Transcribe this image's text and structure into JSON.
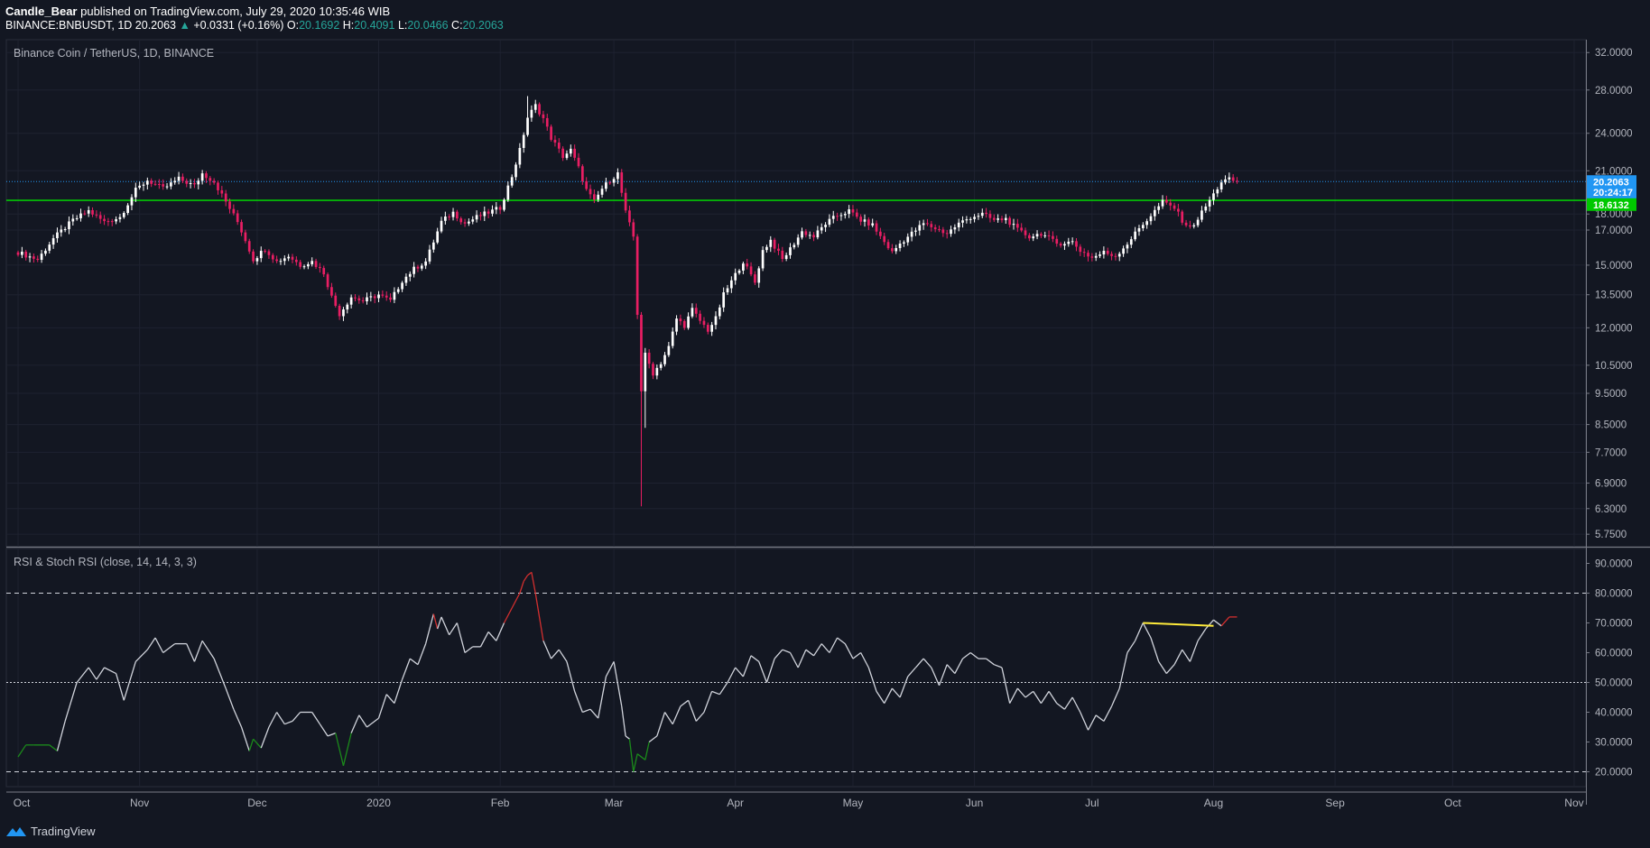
{
  "header": {
    "author": "Candle_Bear",
    "published_text": "published on TradingView.com, July 29, 2020 10:35:46 WIB",
    "symbol": "BINANCE:BNBUSDT, 1D",
    "last": "20.2063",
    "change": "+0.0331 (+0.16%)",
    "o_label": "O:",
    "o": "20.1692",
    "h_label": "H:",
    "h": "20.4091",
    "l_label": "L:",
    "l": "20.0466",
    "c_label": "C:",
    "c": "20.2063"
  },
  "footer": {
    "brand": "TradingView"
  },
  "colors": {
    "background": "#131722",
    "grid": "#1e2230",
    "bull": "#ffffff",
    "bear": "#e91e63",
    "support": "#00e600",
    "last_price": "#2196f3",
    "rsi": "#d1d4dc",
    "overbought": "#d32f2f",
    "oversold": "#1b8a1b",
    "divergence": "#ffeb3b"
  },
  "chart_data": [
    {
      "type": "candlestick",
      "title": "Binance Coin / TetherUS, 1D, BINANCE",
      "scale": "log",
      "ylim": [
        5.5,
        33.5
      ],
      "y_ticks": [
        "32.0000",
        "28.0000",
        "24.0000",
        "21.0000",
        "18.0000",
        "17.0000",
        "15.0000",
        "13.5000",
        "12.0000",
        "10.5000",
        "9.5000",
        "8.5000",
        "7.7000",
        "6.9000",
        "6.3000",
        "5.7500"
      ],
      "x_labels": [
        "Oct",
        "Nov",
        "Dec",
        "2020",
        "Feb",
        "Mar",
        "Apr",
        "May",
        "Jun",
        "Jul",
        "Aug",
        "Sep",
        "Oct",
        "Nov"
      ],
      "x_label_days": [
        0,
        31,
        61,
        92,
        123,
        152,
        183,
        213,
        244,
        274,
        305,
        336,
        366,
        397
      ],
      "x_range_days": [
        -3,
        400
      ],
      "price_labels": [
        {
          "text": "20.2063",
          "value": 20.2063,
          "color": "#2196f3"
        },
        {
          "text": "20:24:17",
          "value": 19.45,
          "color": "#2196f3"
        },
        {
          "text": "18.6132",
          "value": 18.6132,
          "color": "#00c800"
        }
      ],
      "levels": [
        {
          "name": "last-price-line",
          "value": 20.2063,
          "style": "dotted",
          "color": "#2196f3"
        },
        {
          "name": "support-line",
          "value": 18.9,
          "style": "solid",
          "color": "#00e600"
        }
      ],
      "close_path": [
        [
          0,
          15.7
        ],
        [
          5,
          15.3
        ],
        [
          9,
          16.5
        ],
        [
          14,
          17.6
        ],
        [
          18,
          18.2
        ],
        [
          22,
          17.5
        ],
        [
          26,
          17.8
        ],
        [
          30,
          19.6
        ],
        [
          33,
          20.3
        ],
        [
          37,
          19.7
        ],
        [
          41,
          20.4
        ],
        [
          45,
          19.9
        ],
        [
          47,
          20.8
        ],
        [
          50,
          20.2
        ],
        [
          53,
          18.8
        ],
        [
          56,
          17.5
        ],
        [
          58,
          16.4
        ],
        [
          60,
          15.3
        ],
        [
          63,
          15.9
        ],
        [
          66,
          15.2
        ],
        [
          69,
          15.5
        ],
        [
          72,
          15.0
        ],
        [
          75,
          15.2
        ],
        [
          78,
          14.6
        ],
        [
          80,
          13.4
        ],
        [
          82,
          12.6
        ],
        [
          85,
          13.4
        ],
        [
          88,
          13.2
        ],
        [
          92,
          13.5
        ],
        [
          95,
          13.2
        ],
        [
          98,
          14.2
        ],
        [
          101,
          14.8
        ],
        [
          104,
          15.2
        ],
        [
          108,
          17.5
        ],
        [
          111,
          18.1
        ],
        [
          114,
          17.4
        ],
        [
          117,
          17.8
        ],
        [
          120,
          18.1
        ],
        [
          123,
          18.4
        ],
        [
          126,
          20.6
        ],
        [
          128,
          22.6
        ],
        [
          130,
          25.4
        ],
        [
          132,
          26.5
        ],
        [
          134,
          25.3
        ],
        [
          136,
          23.6
        ],
        [
          139,
          22.1
        ],
        [
          141,
          22.6
        ],
        [
          143,
          21.2
        ],
        [
          145,
          19.6
        ],
        [
          147,
          18.8
        ],
        [
          149,
          19.7
        ],
        [
          151,
          20.3
        ],
        [
          153,
          20.8
        ],
        [
          155,
          18.1
        ],
        [
          157,
          16.6
        ],
        [
          159,
          9.6
        ],
        [
          160,
          10.9
        ],
        [
          162,
          10.2
        ],
        [
          164,
          10.6
        ],
        [
          166,
          11.2
        ],
        [
          168,
          12.4
        ],
        [
          170,
          12.1
        ],
        [
          172,
          12.8
        ],
        [
          174,
          12.3
        ],
        [
          176,
          11.9
        ],
        [
          178,
          12.4
        ],
        [
          180,
          13.5
        ],
        [
          183,
          14.5
        ],
        [
          185,
          15.2
        ],
        [
          188,
          14.1
        ],
        [
          190,
          15.8
        ],
        [
          192,
          16.4
        ],
        [
          195,
          15.3
        ],
        [
          197,
          15.9
        ],
        [
          200,
          16.9
        ],
        [
          203,
          16.6
        ],
        [
          206,
          17.4
        ],
        [
          209,
          17.9
        ],
        [
          212,
          18.2
        ],
        [
          215,
          17.6
        ],
        [
          218,
          17.3
        ],
        [
          220,
          16.6
        ],
        [
          223,
          15.7
        ],
        [
          225,
          16.2
        ],
        [
          228,
          16.8
        ],
        [
          231,
          17.4
        ],
        [
          234,
          17.1
        ],
        [
          237,
          16.8
        ],
        [
          240,
          17.4
        ],
        [
          243,
          17.8
        ],
        [
          246,
          18.0
        ],
        [
          249,
          17.6
        ],
        [
          252,
          17.7
        ],
        [
          255,
          17.0
        ],
        [
          258,
          16.6
        ],
        [
          261,
          16.8
        ],
        [
          265,
          16.2
        ],
        [
          269,
          16.3
        ],
        [
          271,
          15.8
        ],
        [
          274,
          15.4
        ],
        [
          277,
          15.7
        ],
        [
          280,
          15.5
        ],
        [
          283,
          16.2
        ],
        [
          286,
          17.1
        ],
        [
          289,
          17.9
        ],
        [
          292,
          18.8
        ],
        [
          295,
          18.4
        ],
        [
          297,
          17.6
        ],
        [
          299,
          17.1
        ],
        [
          301,
          17.7
        ],
        [
          303,
          18.5
        ],
        [
          305,
          19.3
        ],
        [
          307,
          20.2
        ],
        [
          309,
          20.35
        ],
        [
          311,
          20.21
        ]
      ]
    },
    {
      "type": "line",
      "title": "RSI & Stoch RSI (close, 14, 14, 3, 3)",
      "ylim": [
        15,
        95
      ],
      "y_ticks": [
        "90.0000",
        "80.0000",
        "70.0000",
        "60.0000",
        "50.0000",
        "40.0000",
        "30.0000",
        "20.0000"
      ],
      "bands": [
        80,
        50,
        20
      ],
      "overbought": 70,
      "oversold": 30,
      "points": [
        [
          0,
          25
        ],
        [
          2,
          29
        ],
        [
          4,
          29
        ],
        [
          8,
          29
        ],
        [
          10,
          27
        ],
        [
          12,
          37
        ],
        [
          15,
          50
        ],
        [
          18,
          55
        ],
        [
          20,
          51
        ],
        [
          22,
          55
        ],
        [
          25,
          53
        ],
        [
          27,
          44
        ],
        [
          30,
          57
        ],
        [
          33,
          61
        ],
        [
          35,
          65
        ],
        [
          37,
          60
        ],
        [
          40,
          63
        ],
        [
          43,
          63
        ],
        [
          45,
          57
        ],
        [
          47,
          64
        ],
        [
          50,
          58
        ],
        [
          53,
          48
        ],
        [
          55,
          41
        ],
        [
          57,
          35
        ],
        [
          59,
          27
        ],
        [
          60,
          31
        ],
        [
          62,
          28
        ],
        [
          64,
          35
        ],
        [
          66,
          40
        ],
        [
          68,
          36
        ],
        [
          70,
          37
        ],
        [
          72,
          40
        ],
        [
          75,
          40
        ],
        [
          77,
          36
        ],
        [
          79,
          32
        ],
        [
          81,
          33
        ],
        [
          83,
          22
        ],
        [
          85,
          33
        ],
        [
          87,
          39
        ],
        [
          89,
          35
        ],
        [
          92,
          38
        ],
        [
          94,
          46
        ],
        [
          96,
          43
        ],
        [
          98,
          51
        ],
        [
          100,
          58
        ],
        [
          102,
          56
        ],
        [
          104,
          63
        ],
        [
          106,
          73
        ],
        [
          107,
          68
        ],
        [
          108,
          72
        ],
        [
          110,
          66
        ],
        [
          112,
          70
        ],
        [
          114,
          60
        ],
        [
          116,
          62
        ],
        [
          118,
          62
        ],
        [
          120,
          67
        ],
        [
          122,
          64
        ],
        [
          124,
          70
        ],
        [
          126,
          75
        ],
        [
          128,
          80
        ],
        [
          129,
          84
        ],
        [
          130,
          86
        ],
        [
          131,
          87
        ],
        [
          132,
          80
        ],
        [
          134,
          64
        ],
        [
          136,
          58
        ],
        [
          138,
          61
        ],
        [
          140,
          57
        ],
        [
          142,
          47
        ],
        [
          144,
          40
        ],
        [
          146,
          41
        ],
        [
          148,
          38
        ],
        [
          150,
          52
        ],
        [
          152,
          57
        ],
        [
          154,
          42
        ],
        [
          155,
          32
        ],
        [
          156,
          31
        ],
        [
          157,
          20
        ],
        [
          158,
          26
        ],
        [
          160,
          24
        ],
        [
          161,
          30
        ],
        [
          163,
          32
        ],
        [
          165,
          40
        ],
        [
          167,
          36
        ],
        [
          169,
          42
        ],
        [
          171,
          44
        ],
        [
          173,
          37
        ],
        [
          175,
          40
        ],
        [
          177,
          47
        ],
        [
          179,
          46
        ],
        [
          181,
          50
        ],
        [
          183,
          55
        ],
        [
          185,
          52
        ],
        [
          187,
          59
        ],
        [
          189,
          57
        ],
        [
          191,
          50
        ],
        [
          193,
          58
        ],
        [
          195,
          61
        ],
        [
          197,
          60
        ],
        [
          199,
          55
        ],
        [
          201,
          61
        ],
        [
          203,
          59
        ],
        [
          205,
          63
        ],
        [
          207,
          60
        ],
        [
          209,
          65
        ],
        [
          211,
          63
        ],
        [
          213,
          58
        ],
        [
          215,
          60
        ],
        [
          217,
          55
        ],
        [
          219,
          47
        ],
        [
          221,
          43
        ],
        [
          223,
          48
        ],
        [
          225,
          45
        ],
        [
          227,
          52
        ],
        [
          229,
          55
        ],
        [
          231,
          58
        ],
        [
          233,
          55
        ],
        [
          235,
          49
        ],
        [
          237,
          56
        ],
        [
          239,
          53
        ],
        [
          241,
          58
        ],
        [
          243,
          60
        ],
        [
          245,
          58
        ],
        [
          247,
          58
        ],
        [
          249,
          56
        ],
        [
          251,
          55
        ],
        [
          253,
          43
        ],
        [
          255,
          48
        ],
        [
          257,
          45
        ],
        [
          259,
          47
        ],
        [
          261,
          43
        ],
        [
          263,
          47
        ],
        [
          265,
          43
        ],
        [
          267,
          41
        ],
        [
          269,
          45
        ],
        [
          271,
          40
        ],
        [
          273,
          34
        ],
        [
          275,
          39
        ],
        [
          277,
          37
        ],
        [
          279,
          42
        ],
        [
          281,
          48
        ],
        [
          283,
          60
        ],
        [
          285,
          64
        ],
        [
          287,
          70
        ],
        [
          289,
          65
        ],
        [
          291,
          57
        ],
        [
          293,
          53
        ],
        [
          295,
          56
        ],
        [
          297,
          61
        ],
        [
          299,
          57
        ],
        [
          301,
          64
        ],
        [
          303,
          68
        ],
        [
          305,
          71
        ],
        [
          307,
          69
        ],
        [
          309,
          72
        ],
        [
          311,
          72
        ]
      ],
      "divergence": [
        [
          287,
          70
        ],
        [
          305,
          69
        ]
      ]
    }
  ]
}
